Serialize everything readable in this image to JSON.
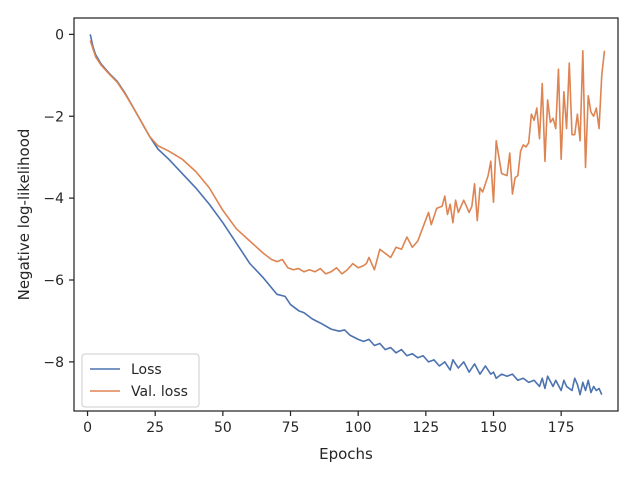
{
  "chart_data": {
    "type": "line",
    "xlabel": "Epochs",
    "ylabel": "Negative log-likelihood",
    "xlim": [
      -5,
      196
    ],
    "ylim": [
      -9.2,
      0.4
    ],
    "xticks": [
      0,
      25,
      50,
      75,
      100,
      125,
      150,
      175
    ],
    "yticks": [
      0,
      -2,
      -4,
      -6,
      -8
    ],
    "ytick_labels": [
      "0",
      "−2",
      "−4",
      "−6",
      "−8"
    ],
    "grid": false,
    "legend_position": "lower-left",
    "series": [
      {
        "name": "Loss",
        "color": "#4c72b0",
        "points": [
          [
            1,
            0
          ],
          [
            2,
            -0.3
          ],
          [
            3,
            -0.5
          ],
          [
            5,
            -0.72
          ],
          [
            8,
            -0.95
          ],
          [
            11,
            -1.15
          ],
          [
            14,
            -1.45
          ],
          [
            17,
            -1.8
          ],
          [
            20,
            -2.15
          ],
          [
            23,
            -2.5
          ],
          [
            26,
            -2.8
          ],
          [
            30,
            -3.05
          ],
          [
            35,
            -3.4
          ],
          [
            40,
            -3.75
          ],
          [
            45,
            -4.15
          ],
          [
            50,
            -4.6
          ],
          [
            55,
            -5.1
          ],
          [
            60,
            -5.6
          ],
          [
            65,
            -5.95
          ],
          [
            70,
            -6.35
          ],
          [
            73,
            -6.4
          ],
          [
            75,
            -6.6
          ],
          [
            78,
            -6.75
          ],
          [
            80,
            -6.8
          ],
          [
            83,
            -6.95
          ],
          [
            86,
            -7.05
          ],
          [
            90,
            -7.2
          ],
          [
            93,
            -7.25
          ],
          [
            95,
            -7.22
          ],
          [
            97,
            -7.35
          ],
          [
            100,
            -7.45
          ],
          [
            102,
            -7.5
          ],
          [
            104,
            -7.45
          ],
          [
            106,
            -7.6
          ],
          [
            108,
            -7.55
          ],
          [
            110,
            -7.7
          ],
          [
            112,
            -7.65
          ],
          [
            114,
            -7.78
          ],
          [
            116,
            -7.7
          ],
          [
            118,
            -7.85
          ],
          [
            120,
            -7.8
          ],
          [
            122,
            -7.9
          ],
          [
            124,
            -7.85
          ],
          [
            126,
            -8.0
          ],
          [
            128,
            -7.95
          ],
          [
            130,
            -8.1
          ],
          [
            132,
            -8.0
          ],
          [
            134,
            -8.2
          ],
          [
            135,
            -7.95
          ],
          [
            137,
            -8.15
          ],
          [
            139,
            -8.0
          ],
          [
            141,
            -8.25
          ],
          [
            143,
            -8.05
          ],
          [
            145,
            -8.3
          ],
          [
            147,
            -8.1
          ],
          [
            149,
            -8.3
          ],
          [
            150,
            -8.25
          ],
          [
            151,
            -8.4
          ],
          [
            153,
            -8.3
          ],
          [
            155,
            -8.35
          ],
          [
            157,
            -8.3
          ],
          [
            159,
            -8.45
          ],
          [
            161,
            -8.4
          ],
          [
            163,
            -8.5
          ],
          [
            165,
            -8.45
          ],
          [
            167,
            -8.6
          ],
          [
            168,
            -8.4
          ],
          [
            169,
            -8.65
          ],
          [
            170,
            -8.35
          ],
          [
            172,
            -8.6
          ],
          [
            173,
            -8.45
          ],
          [
            175,
            -8.7
          ],
          [
            176,
            -8.45
          ],
          [
            177,
            -8.6
          ],
          [
            179,
            -8.7
          ],
          [
            180,
            -8.4
          ],
          [
            181,
            -8.55
          ],
          [
            182,
            -8.8
          ],
          [
            183,
            -8.5
          ],
          [
            184,
            -8.7
          ],
          [
            185,
            -8.45
          ],
          [
            186,
            -8.75
          ],
          [
            187,
            -8.6
          ],
          [
            188,
            -8.7
          ],
          [
            189,
            -8.65
          ],
          [
            190,
            -8.8
          ]
        ]
      },
      {
        "name": "Val. loss",
        "color": "#dd8452",
        "points": [
          [
            1,
            -0.15
          ],
          [
            2,
            -0.35
          ],
          [
            3,
            -0.55
          ],
          [
            5,
            -0.75
          ],
          [
            8,
            -0.97
          ],
          [
            11,
            -1.17
          ],
          [
            14,
            -1.47
          ],
          [
            17,
            -1.8
          ],
          [
            20,
            -2.15
          ],
          [
            23,
            -2.5
          ],
          [
            26,
            -2.72
          ],
          [
            30,
            -2.85
          ],
          [
            35,
            -3.05
          ],
          [
            40,
            -3.35
          ],
          [
            45,
            -3.75
          ],
          [
            50,
            -4.3
          ],
          [
            55,
            -4.75
          ],
          [
            60,
            -5.05
          ],
          [
            65,
            -5.35
          ],
          [
            68,
            -5.5
          ],
          [
            70,
            -5.55
          ],
          [
            72,
            -5.5
          ],
          [
            74,
            -5.7
          ],
          [
            76,
            -5.75
          ],
          [
            78,
            -5.72
          ],
          [
            80,
            -5.8
          ],
          [
            82,
            -5.75
          ],
          [
            84,
            -5.8
          ],
          [
            86,
            -5.72
          ],
          [
            88,
            -5.85
          ],
          [
            90,
            -5.8
          ],
          [
            92,
            -5.7
          ],
          [
            94,
            -5.85
          ],
          [
            96,
            -5.75
          ],
          [
            98,
            -5.6
          ],
          [
            100,
            -5.7
          ],
          [
            102,
            -5.65
          ],
          [
            103,
            -5.6
          ],
          [
            104,
            -5.45
          ],
          [
            106,
            -5.75
          ],
          [
            108,
            -5.25
          ],
          [
            110,
            -5.35
          ],
          [
            112,
            -5.45
          ],
          [
            114,
            -5.2
          ],
          [
            116,
            -5.25
          ],
          [
            118,
            -4.95
          ],
          [
            120,
            -5.2
          ],
          [
            122,
            -5.05
          ],
          [
            124,
            -4.7
          ],
          [
            126,
            -4.35
          ],
          [
            127,
            -4.65
          ],
          [
            129,
            -4.25
          ],
          [
            131,
            -4.2
          ],
          [
            132,
            -3.95
          ],
          [
            133,
            -4.4
          ],
          [
            134,
            -4.15
          ],
          [
            135,
            -4.6
          ],
          [
            136,
            -4.05
          ],
          [
            137,
            -4.35
          ],
          [
            139,
            -4.05
          ],
          [
            141,
            -4.35
          ],
          [
            142,
            -4.2
          ],
          [
            143,
            -3.65
          ],
          [
            144,
            -4.55
          ],
          [
            145,
            -3.75
          ],
          [
            146,
            -3.85
          ],
          [
            148,
            -3.45
          ],
          [
            149,
            -3.1
          ],
          [
            150,
            -4.1
          ],
          [
            151,
            -2.6
          ],
          [
            152,
            -3.0
          ],
          [
            153,
            -3.4
          ],
          [
            155,
            -3.45
          ],
          [
            156,
            -2.9
          ],
          [
            157,
            -3.9
          ],
          [
            158,
            -3.5
          ],
          [
            159,
            -3.45
          ],
          [
            160,
            -2.85
          ],
          [
            161,
            -2.7
          ],
          [
            162,
            -2.75
          ],
          [
            163,
            -2.65
          ],
          [
            164,
            -1.95
          ],
          [
            165,
            -2.1
          ],
          [
            166,
            -1.8
          ],
          [
            167,
            -2.55
          ],
          [
            168,
            -1.2
          ],
          [
            169,
            -3.1
          ],
          [
            170,
            -1.6
          ],
          [
            171,
            -2.15
          ],
          [
            172,
            -2.05
          ],
          [
            173,
            -2.3
          ],
          [
            174,
            -0.85
          ],
          [
            175,
            -3.05
          ],
          [
            176,
            -1.4
          ],
          [
            177,
            -2.3
          ],
          [
            178,
            -0.7
          ],
          [
            179,
            -2.45
          ],
          [
            180,
            -2.45
          ],
          [
            181,
            -1.95
          ],
          [
            182,
            -2.6
          ],
          [
            183,
            -0.4
          ],
          [
            184,
            -3.25
          ],
          [
            185,
            -1.5
          ],
          [
            186,
            -1.9
          ],
          [
            187,
            -2.0
          ],
          [
            188,
            -1.8
          ],
          [
            189,
            -2.3
          ],
          [
            190,
            -1.0
          ],
          [
            191,
            -0.4
          ]
        ]
      }
    ]
  }
}
